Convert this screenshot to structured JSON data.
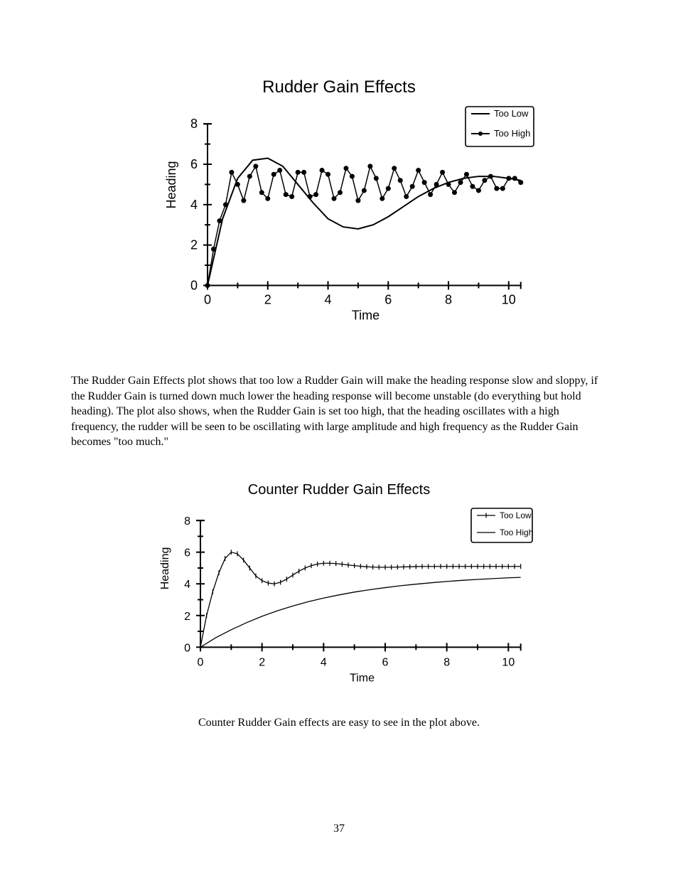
{
  "chart1": {
    "type": "line",
    "title": "Rudder Gain Effects",
    "title_fontsize": 24,
    "xlabel": "Time",
    "ylabel": "Heading",
    "label_fontsize": 18,
    "tick_fontsize": 18,
    "xlim": [
      0,
      10.5
    ],
    "ylim": [
      -0.3,
      8.5
    ],
    "xticks": [
      0,
      2,
      4,
      6,
      8,
      10
    ],
    "yticks": [
      0,
      2,
      4,
      6,
      8
    ],
    "axis_color": "#000000",
    "axis_width": 2,
    "background_color": "#ffffff",
    "legend": {
      "position": "top-right",
      "border_color": "#000000",
      "items": [
        {
          "label": "Too Low",
          "marker": "none",
          "line_color": "#000000",
          "line_width": 2
        },
        {
          "label": "Too High",
          "marker": "dot",
          "line_color": "#000000",
          "line_width": 2
        }
      ]
    },
    "series": [
      {
        "name": "Too Low",
        "type": "line",
        "line_color": "#000000",
        "line_width": 2,
        "marker": "none",
        "x": [
          0,
          0.5,
          1.0,
          1.5,
          2.0,
          2.5,
          3.0,
          3.5,
          4.0,
          4.5,
          5.0,
          5.5,
          6.0,
          6.5,
          7.0,
          7.5,
          8.0,
          8.5,
          9.0,
          9.5,
          10.0,
          10.4
        ],
        "y": [
          0,
          3.3,
          5.3,
          6.2,
          6.3,
          5.9,
          5.0,
          4.1,
          3.3,
          2.9,
          2.8,
          3.0,
          3.4,
          3.9,
          4.4,
          4.8,
          5.1,
          5.3,
          5.4,
          5.4,
          5.3,
          5.2
        ]
      },
      {
        "name": "Too High",
        "type": "line-marker",
        "line_color": "#000000",
        "line_width": 1.5,
        "marker": "dot",
        "marker_size": 3.5,
        "x": [
          0,
          0.2,
          0.4,
          0.6,
          0.8,
          1.0,
          1.2,
          1.4,
          1.6,
          1.8,
          2.0,
          2.2,
          2.4,
          2.6,
          2.8,
          3.0,
          3.2,
          3.4,
          3.6,
          3.8,
          4.0,
          4.2,
          4.4,
          4.6,
          4.8,
          5.0,
          5.2,
          5.4,
          5.6,
          5.8,
          6.0,
          6.2,
          6.4,
          6.6,
          6.8,
          7.0,
          7.2,
          7.4,
          7.6,
          7.8,
          8.0,
          8.2,
          8.4,
          8.6,
          8.8,
          9.0,
          9.2,
          9.4,
          9.6,
          9.8,
          10.0,
          10.2,
          10.4
        ],
        "y": [
          0,
          1.8,
          3.2,
          4.0,
          5.6,
          5.0,
          4.2,
          5.4,
          5.9,
          4.6,
          4.3,
          5.5,
          5.7,
          4.5,
          4.4,
          5.6,
          5.6,
          4.4,
          4.5,
          5.7,
          5.5,
          4.3,
          4.6,
          5.8,
          5.4,
          4.2,
          4.7,
          5.9,
          5.3,
          4.3,
          4.8,
          5.8,
          5.2,
          4.4,
          4.9,
          5.7,
          5.1,
          4.5,
          5.0,
          5.6,
          5.0,
          4.6,
          5.1,
          5.5,
          4.9,
          4.7,
          5.2,
          5.4,
          4.8,
          4.8,
          5.3,
          5.3,
          5.1
        ]
      }
    ]
  },
  "paragraph1": "The Rudder Gain Effects plot shows that too low a Rudder Gain will make the heading response slow and sloppy, if the Rudder Gain is turned down much lower the heading response will become unstable (do everything but hold heading).  The plot also shows, when the Rudder Gain is set too high, that the heading oscillates with a high frequency, the rudder will be seen to be oscillating with large amplitude and high frequency as the Rudder Gain becomes \"too much.\"",
  "chart2": {
    "type": "line",
    "title": "Counter Rudder Gain Effects",
    "title_fontsize": 20,
    "xlabel": "Time",
    "ylabel": "Heading",
    "label_fontsize": 16,
    "tick_fontsize": 16,
    "xlim": [
      0,
      10.5
    ],
    "ylim": [
      -0.3,
      8.5
    ],
    "xticks": [
      0,
      2,
      4,
      6,
      8,
      10
    ],
    "yticks": [
      0,
      2,
      4,
      6,
      8
    ],
    "axis_color": "#000000",
    "axis_width": 2,
    "background_color": "#ffffff",
    "legend": {
      "position": "top-right",
      "border_color": "#000000",
      "items": [
        {
          "label": "Too Low",
          "marker": "tick",
          "line_color": "#000000",
          "line_width": 1.3
        },
        {
          "label": "Too High",
          "marker": "none",
          "line_color": "#000000",
          "line_width": 1.3
        }
      ]
    },
    "series": [
      {
        "name": "Too Low",
        "type": "line-tick",
        "line_color": "#000000",
        "line_width": 1.3,
        "marker": "tick",
        "x": [
          0,
          0.2,
          0.4,
          0.6,
          0.8,
          1.0,
          1.2,
          1.4,
          1.6,
          1.8,
          2.0,
          2.2,
          2.4,
          2.6,
          2.8,
          3.0,
          3.2,
          3.4,
          3.6,
          3.8,
          4.0,
          4.2,
          4.4,
          4.6,
          4.8,
          5.0,
          5.2,
          5.4,
          5.6,
          5.8,
          6.0,
          6.2,
          6.4,
          6.6,
          6.8,
          7.0,
          7.2,
          7.4,
          7.6,
          7.8,
          8.0,
          8.2,
          8.4,
          8.6,
          8.8,
          9.0,
          9.2,
          9.4,
          9.6,
          9.8,
          10.0,
          10.2,
          10.4
        ],
        "y": [
          0,
          2.0,
          3.5,
          4.7,
          5.6,
          6.0,
          5.9,
          5.5,
          5.0,
          4.5,
          4.2,
          4.05,
          4.0,
          4.1,
          4.3,
          4.55,
          4.8,
          5.0,
          5.15,
          5.25,
          5.3,
          5.3,
          5.28,
          5.24,
          5.19,
          5.15,
          5.11,
          5.08,
          5.06,
          5.05,
          5.05,
          5.05,
          5.06,
          5.07,
          5.08,
          5.09,
          5.1,
          5.1,
          5.1,
          5.1,
          5.1,
          5.1,
          5.1,
          5.1,
          5.1,
          5.1,
          5.1,
          5.1,
          5.1,
          5.1,
          5.1,
          5.1,
          5.1
        ]
      },
      {
        "name": "Too High",
        "type": "line",
        "line_color": "#000000",
        "line_width": 1.3,
        "marker": "none",
        "x": [
          0,
          0.5,
          1.0,
          1.5,
          2.0,
          2.5,
          3.0,
          3.5,
          4.0,
          4.5,
          5.0,
          5.5,
          6.0,
          6.5,
          7.0,
          7.5,
          8.0,
          8.5,
          9.0,
          9.5,
          10.0,
          10.4
        ],
        "y": [
          0,
          0.6,
          1.1,
          1.55,
          1.95,
          2.3,
          2.6,
          2.87,
          3.1,
          3.3,
          3.48,
          3.63,
          3.76,
          3.88,
          3.98,
          4.07,
          4.15,
          4.22,
          4.28,
          4.33,
          4.38,
          4.41
        ]
      }
    ]
  },
  "center_line": "Counter Rudder Gain effects are easy to see in the plot above.",
  "page_number": "37"
}
